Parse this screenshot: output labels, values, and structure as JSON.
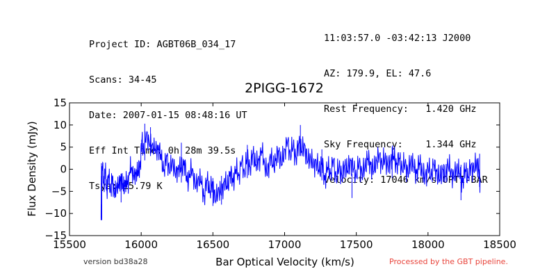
{
  "header_left": [
    "Project ID: AGBT06B_034_17",
    "Scans: 34-45",
    "Date: 2007-01-15 08:48:16 UT",
    "Eff Int Time: 0h 28m 39.5s",
    "Tsys: 15.79 K"
  ],
  "header_right": [
    "11:03:57.0 -03:42:13 J2000",
    "AZ: 179.9, EL: 47.6",
    "Rest Frequency:   1.420 GHz",
    "Sky Frequency:    1.344 GHz",
    "Velocity: 17046 km/s OPTI-BAR"
  ],
  "footer": {
    "version": "version bd38a28",
    "pipeline": "Processed by the GBT pipeline.",
    "pipeline_color": "#e8433a"
  },
  "chart_data": {
    "type": "line",
    "title": "2PIGG-1672",
    "xlabel": "Bar Optical Velocity (km/s)",
    "ylabel": "Flux Density (mJy)",
    "xlim": [
      15500,
      18500
    ],
    "ylim": [
      -15,
      15
    ],
    "xticks": [
      15500,
      16000,
      16500,
      17000,
      17500,
      18000,
      18500
    ],
    "yticks": [
      -15,
      -10,
      -5,
      0,
      5,
      10,
      15
    ],
    "xtick_labels": [
      "15500",
      "16000",
      "16500",
      "17000",
      "17500",
      "18000",
      "18500"
    ],
    "ytick_labels": [
      "−15",
      "−10",
      "−5",
      "0",
      "5",
      "10",
      "15"
    ],
    "grid": false,
    "line_color": "#0000ff",
    "series": [
      {
        "x": [
          15720,
          15722,
          15725,
          15730,
          15740,
          15750,
          15760,
          15775,
          15790,
          15800,
          15815,
          15830,
          15845,
          15860,
          15875,
          15890,
          15905,
          15920,
          15935,
          15950,
          15965,
          15980,
          15995,
          16005,
          16020,
          16040,
          16060,
          16080,
          16100,
          16120,
          16140,
          16160,
          16180,
          16200,
          16220,
          16240,
          16260,
          16280,
          16300,
          16320,
          16340,
          16360,
          16380,
          16400,
          16420,
          16440,
          16460,
          16480,
          16500,
          16520,
          16540,
          16560,
          16580,
          16600,
          16620,
          16640,
          16660,
          16680,
          16700,
          16720,
          16740,
          16760,
          16780,
          16800,
          16820,
          16840,
          16860,
          16880,
          16900,
          16920,
          16940,
          16960,
          16980,
          17000,
          17020,
          17040,
          17060,
          17080,
          17100,
          17120,
          17140,
          17160,
          17180,
          17200,
          17220,
          17240,
          17260,
          17280,
          17300,
          17320,
          17340,
          17360,
          17380,
          17400,
          17420,
          17440,
          17460,
          17480,
          17500,
          17520,
          17540,
          17560,
          17580,
          17600,
          17620,
          17640,
          17660,
          17680,
          17700,
          17720,
          17740,
          17760,
          17780,
          17800,
          17820,
          17840,
          17860,
          17880,
          17900,
          17920,
          17940,
          17960,
          17980,
          18000,
          18020,
          18040,
          18060,
          18080,
          18100,
          18120,
          18140,
          18160,
          18180,
          18200,
          18220,
          18240,
          18260,
          18280,
          18300,
          18320,
          18340,
          18355,
          18365
        ],
        "y": [
          -11.5,
          -1.5,
          -2.0,
          0.5,
          -3.0,
          -1.0,
          -4.0,
          -2.0,
          -5.0,
          -1.5,
          -6.5,
          -3.0,
          -4.5,
          -1.0,
          -5.0,
          -2.5,
          -3.5,
          -0.5,
          0.5,
          -2.5,
          0.0,
          -1.5,
          2.0,
          6.5,
          4.0,
          8.5,
          5.0,
          6.0,
          3.5,
          5.5,
          2.0,
          0.0,
          3.0,
          -1.0,
          2.5,
          -2.0,
          1.0,
          -0.5,
          2.0,
          -3.0,
          -1.0,
          0.0,
          -4.5,
          -1.5,
          -3.5,
          -6.0,
          -2.5,
          -5.0,
          -3.0,
          -7.5,
          -4.0,
          -6.0,
          -2.0,
          -4.5,
          -0.5,
          -3.0,
          0.0,
          -1.5,
          1.5,
          -0.5,
          2.5,
          0.5,
          3.5,
          1.0,
          2.0,
          4.0,
          1.5,
          -1.5,
          3.5,
          0.5,
          2.5,
          4.0,
          1.0,
          4.5,
          6.0,
          3.5,
          5.0,
          2.5,
          6.0,
          4.0,
          5.5,
          1.5,
          3.0,
          0.5,
          2.0,
          -0.5,
          1.5,
          -2.5,
          0.5,
          -1.0,
          2.0,
          -2.0,
          0.5,
          -1.5,
          1.0,
          -0.5,
          2.0,
          0.0,
          -1.5,
          1.5,
          -1.0,
          0.5,
          2.5,
          1.0,
          -0.5,
          2.0,
          3.0,
          1.0,
          2.5,
          0.5,
          2.0,
          3.0,
          1.0,
          2.5,
          0.0,
          1.5,
          -1.0,
          2.0,
          0.5,
          -1.0,
          1.5,
          -0.5,
          -2.0,
          0.5,
          -1.5,
          1.0,
          -0.5,
          -2.5,
          0.0,
          -1.5,
          1.0,
          -0.5,
          -2.0,
          0.5,
          -1.0,
          -3.0,
          0.0,
          -2.0,
          1.0,
          -0.5,
          2.0,
          -1.0,
          -3.0
        ]
      }
    ],
    "spikes": [
      {
        "x": 15725,
        "y0": -11.5,
        "y1": 0.5
      },
      {
        "x": 15860,
        "y0": -7.5,
        "y1": -1.0
      },
      {
        "x": 16025,
        "y0": 2.0,
        "y1": 10.3
      },
      {
        "x": 16065,
        "y0": 3.0,
        "y1": 9.5
      },
      {
        "x": 16280,
        "y0": -3.0,
        "y1": 6.0
      },
      {
        "x": 16500,
        "y0": -8.3,
        "y1": -2.0
      },
      {
        "x": 16560,
        "y0": -8.0,
        "y1": -1.5
      },
      {
        "x": 16740,
        "y0": -2.0,
        "y1": 5.5
      },
      {
        "x": 17110,
        "y0": 3.0,
        "y1": 10.0
      },
      {
        "x": 17260,
        "y0": -2.5,
        "y1": 4.5
      },
      {
        "x": 17470,
        "y0": -6.5,
        "y1": -1.0
      },
      {
        "x": 17750,
        "y0": -2.0,
        "y1": 5.0
      },
      {
        "x": 18230,
        "y0": -7.0,
        "y1": 1.0
      },
      {
        "x": 18360,
        "y0": -4.0,
        "y1": 3.5
      }
    ]
  }
}
